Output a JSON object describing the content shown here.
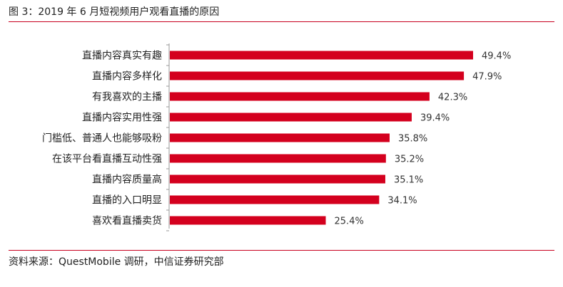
{
  "figure": {
    "title": "图 3：2019 年 6 月短视频用户观看直播的原因",
    "source": "资料来源：QuestMobile 调研，中信证券研究部"
  },
  "colors": {
    "bar": "#d4001e",
    "rule": "#c8001e",
    "axis": "#9a9a9a"
  },
  "chart_data": {
    "type": "bar",
    "orientation": "horizontal",
    "categories": [
      "直播内容真实有趣",
      "直播内容多样化",
      "有我喜欢的主播",
      "直播内容实用性强",
      "门槛低、普通人也能够吸粉",
      "在该平台看直播互动性强",
      "直播内容质量高",
      "直播的入口明显",
      "喜欢看直播卖货"
    ],
    "values": [
      49.4,
      47.9,
      42.3,
      39.4,
      35.8,
      35.2,
      35.1,
      34.1,
      25.4
    ],
    "value_labels": [
      "49.4%",
      "47.9%",
      "42.3%",
      "39.4%",
      "35.8%",
      "35.2%",
      "35.1%",
      "34.1%",
      "25.4%"
    ],
    "xlim": [
      0,
      50.6
    ],
    "grid": false,
    "legend": "none"
  }
}
